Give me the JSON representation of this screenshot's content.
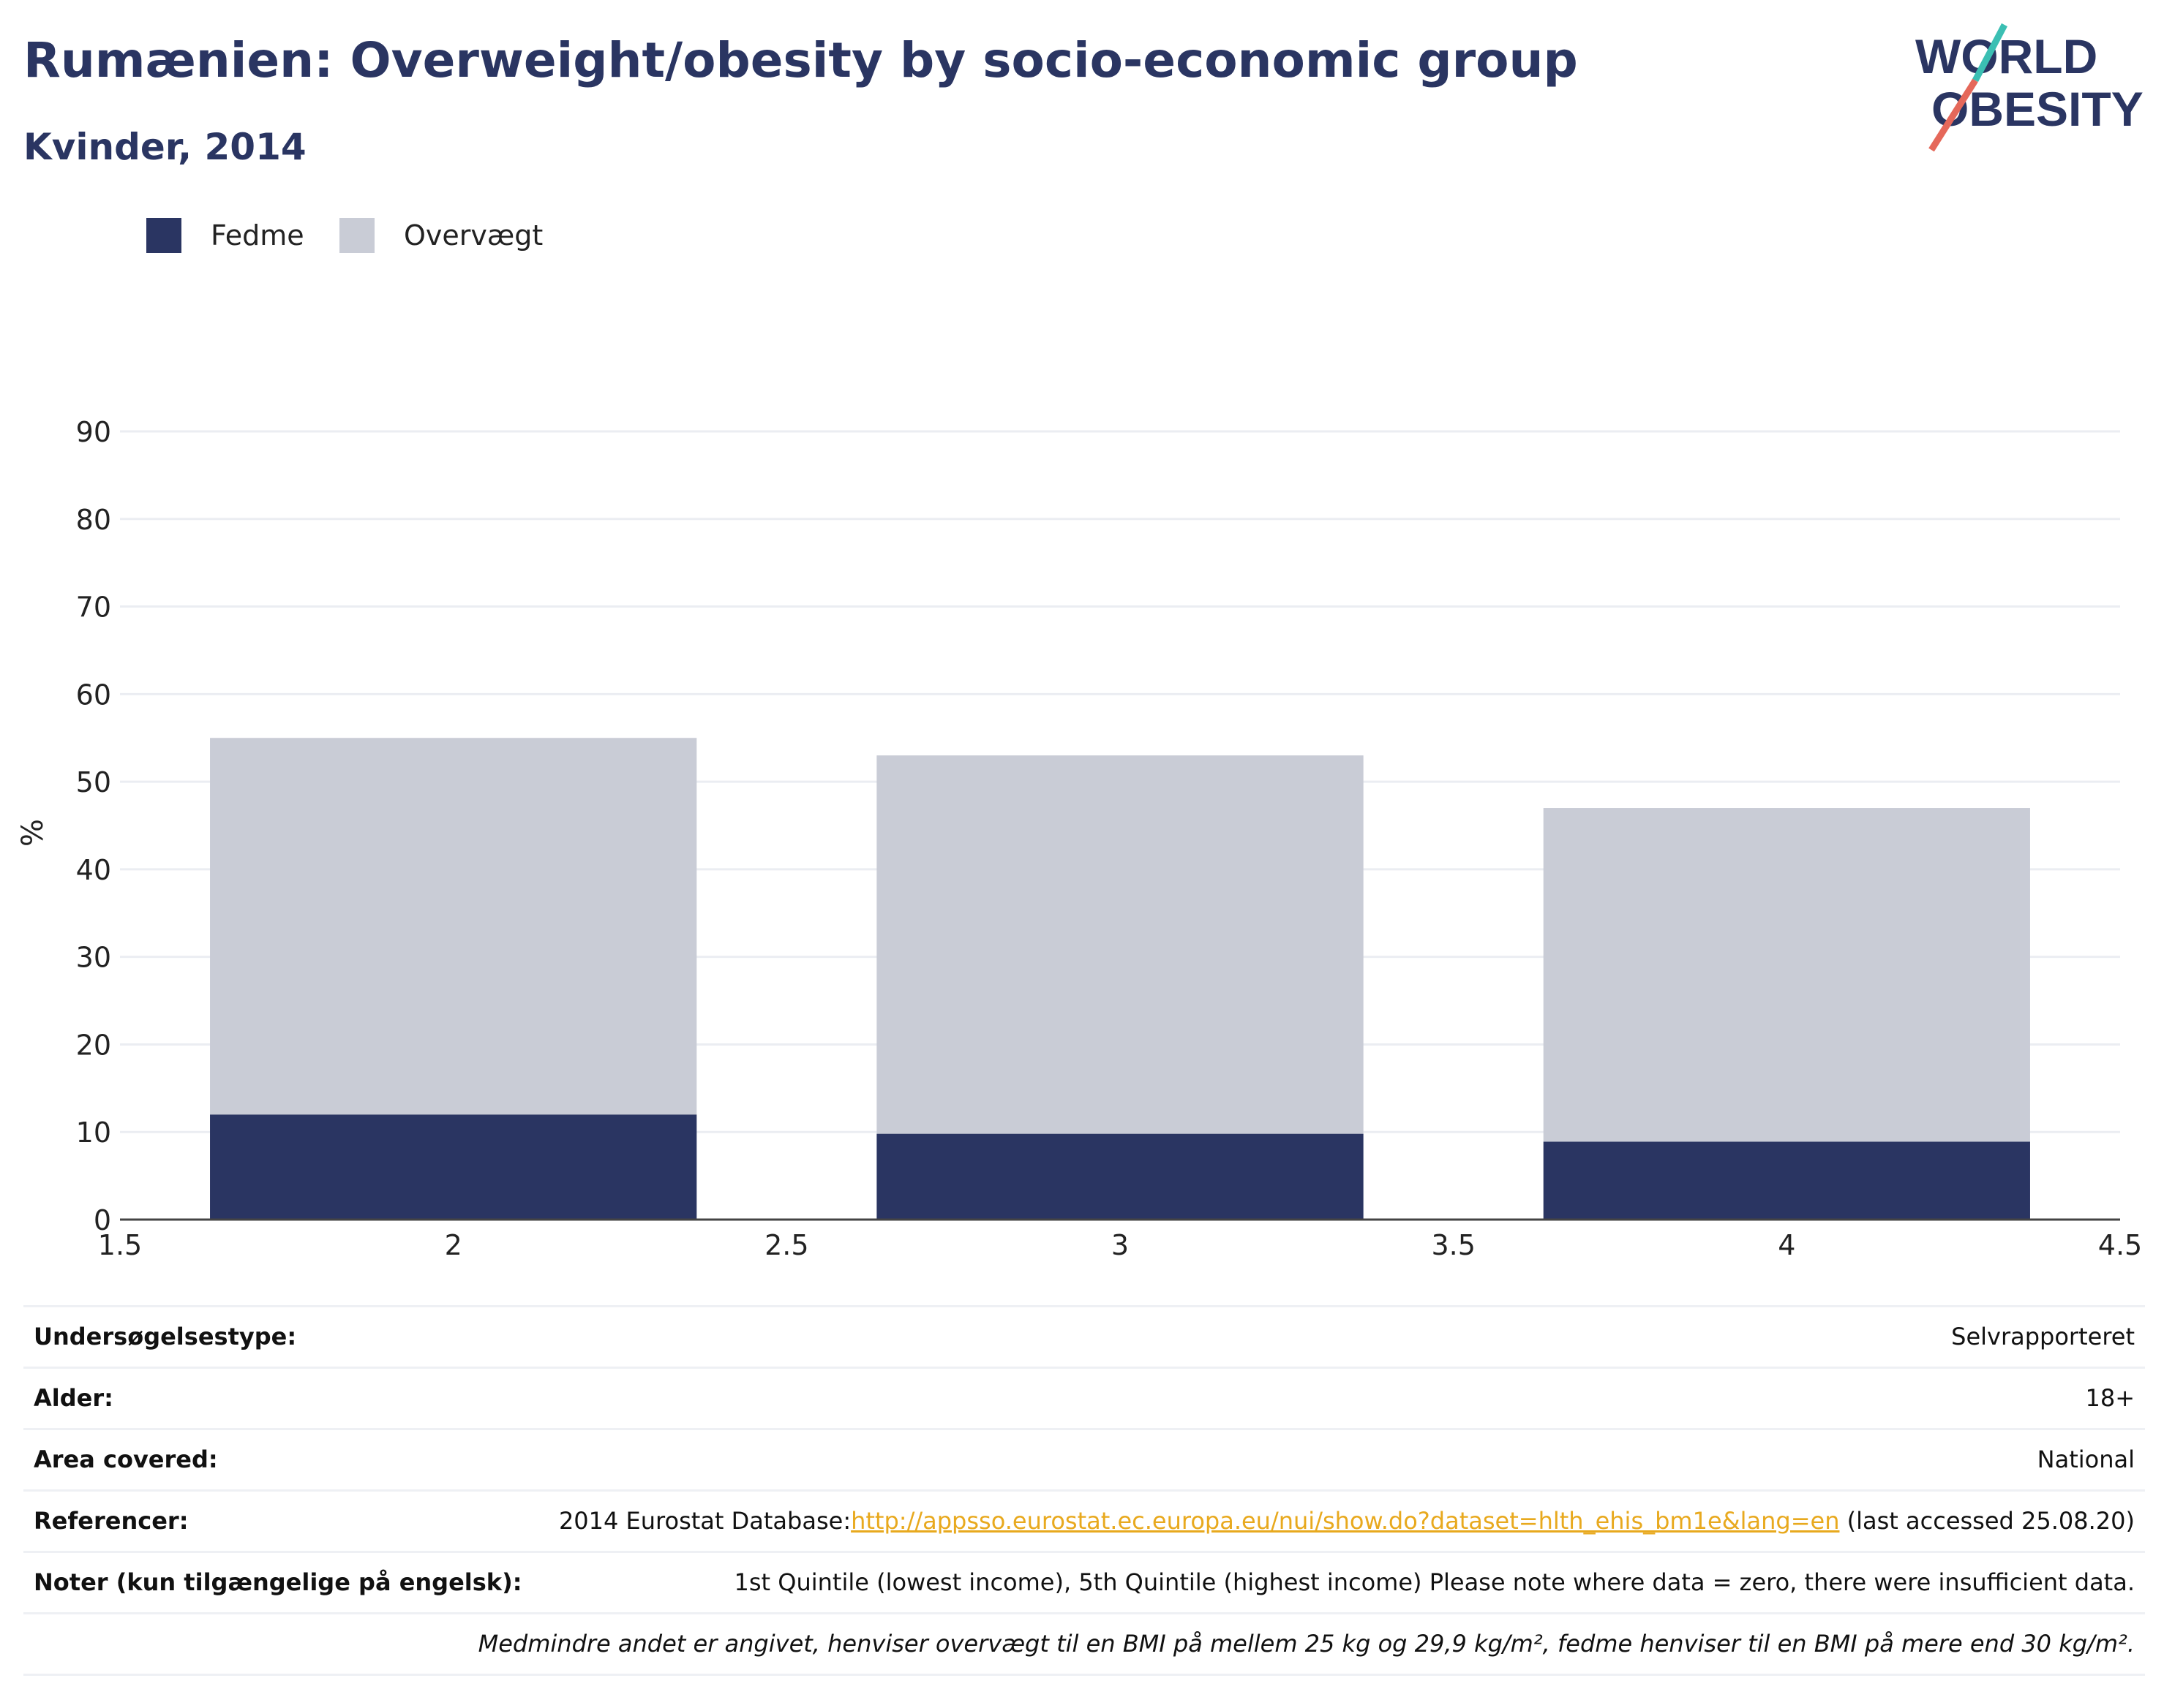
{
  "header": {
    "title": "Rumænien: Overweight/obesity by socio-economic group",
    "subtitle": "Kvinder, 2014"
  },
  "logo": {
    "line1": "WORLD",
    "line2": "OBESITY"
  },
  "colors": {
    "fedme": "#2a3562",
    "overvaegt": "#c9ccd6",
    "title": "#2a3562",
    "link": "#e8a91e"
  },
  "legend": [
    {
      "label": "Fedme",
      "color": "#2a3562"
    },
    {
      "label": "Overvægt",
      "color": "#c9ccd6"
    }
  ],
  "chart_data": {
    "type": "bar",
    "stacked": true,
    "x": [
      2,
      3,
      4
    ],
    "series": [
      {
        "name": "Fedme",
        "values": [
          12,
          9.8,
          8.9
        ]
      },
      {
        "name": "Overvægt",
        "values": [
          43,
          43.2,
          38.1
        ]
      }
    ],
    "ylabel": "%",
    "ylim": [
      0,
      90
    ],
    "yticks": [
      0,
      10,
      20,
      30,
      40,
      50,
      60,
      70,
      80,
      90
    ],
    "xlim": [
      1.5,
      4.5
    ],
    "xticks": [
      "1.5",
      "2",
      "2.5",
      "3",
      "3.5",
      "4",
      "4.5"
    ],
    "grid": true,
    "legend_position": "top-left"
  },
  "info": {
    "rows": [
      {
        "label": "Undersøgelsestype:",
        "value": "Selvrapporteret"
      },
      {
        "label": "Alder:",
        "value": "18+"
      },
      {
        "label": "Area covered:",
        "value": "National"
      },
      {
        "label": "Referencer:",
        "value_prefix": "2014 Eurostat Database:",
        "link": "http://appsso.eurostat.ec.europa.eu/nui/show.do?dataset=hlth_ehis_bm1e&lang=en",
        "value_suffix": " (last accessed 25.08.20)"
      },
      {
        "label": "Noter (kun tilgængelige på engelsk):",
        "value": "1st Quintile (lowest income), 5th Quintile (highest income) Please note where data = zero, there were insufficient data."
      },
      {
        "label": "",
        "value": "Medmindre andet er angivet, henviser overvægt til en BMI på mellem 25 kg og 29,9 kg/m², fedme henviser til en BMI på mere end 30 kg/m²."
      }
    ]
  }
}
